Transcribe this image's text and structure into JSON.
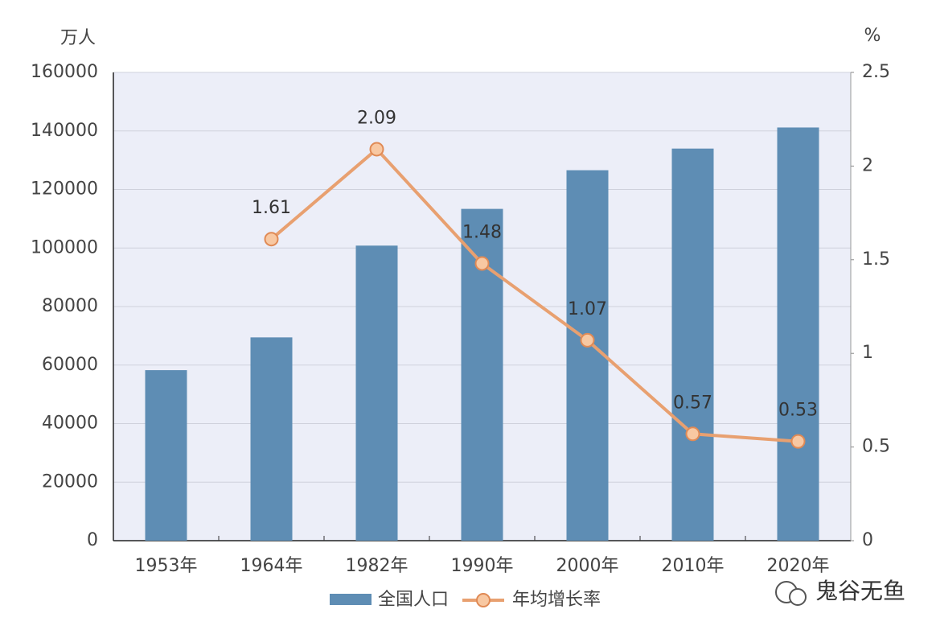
{
  "chart_data": {
    "type": "bar",
    "y_label": "万人",
    "y2_label": "%",
    "categories": [
      "1953年",
      "1964年",
      "1982年",
      "1990年",
      "2000年",
      "2010年",
      "2020年"
    ],
    "series": [
      {
        "name": "全国人口",
        "color": "#5e8db4",
        "values": [
          58260,
          69458,
          100818,
          113368,
          126583,
          133972,
          141178
        ]
      },
      {
        "name": "年均增长率",
        "type": "line",
        "axis": "y2",
        "color": "#e8a070",
        "values": [
          null,
          1.61,
          2.09,
          1.48,
          1.07,
          0.57,
          0.53
        ]
      }
    ],
    "ylim": [
      0,
      160000
    ],
    "yticks": [
      0,
      20000,
      40000,
      60000,
      80000,
      100000,
      120000,
      140000,
      160000
    ],
    "y2lim": [
      0,
      2.5
    ],
    "y2ticks": [
      0,
      0.5,
      1,
      1.5,
      2,
      2.5
    ],
    "grid": true
  },
  "watermark": "鬼谷无鱼"
}
